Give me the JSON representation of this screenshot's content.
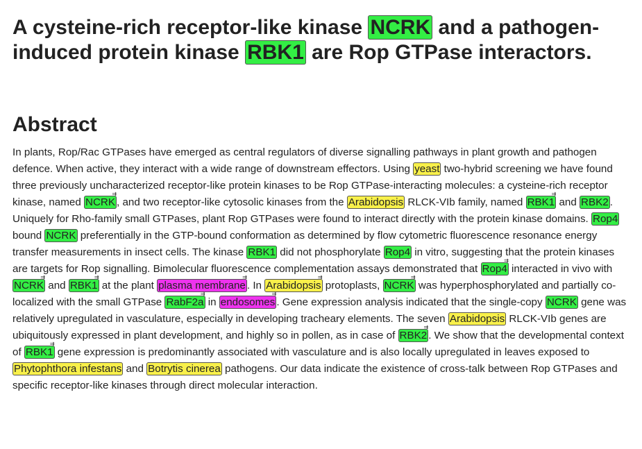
{
  "title": {
    "p1": "A cysteine-rich receptor-like kinase ",
    "e1": "NCRK",
    "p2": " and a pathogen-induced protein kinase ",
    "e2": "RBK1",
    "p3": " are Rop GTPase interactors."
  },
  "abstract_heading": "Abstract",
  "annotation_colors": {
    "gene": "#33ee44",
    "organism": "#f8f04a",
    "location": "#ee33ee"
  },
  "annotation_icon": "link-arrow-icon",
  "abstract": [
    {
      "t": "In plants, Rop/Rac GTPases have emerged as central regulators of diverse signalling pathways in plant growth and pathogen defence. When active, they interact with a wide range of downstream effectors. Using "
    },
    {
      "t": "yeast",
      "k": "org"
    },
    {
      "t": " two-hybrid screening we have found three previously uncharacterized receptor-like protein kinases to be Rop GTPase-interacting molecules: a cysteine-rich receptor kinase, named "
    },
    {
      "t": "NCRK",
      "k": "gene",
      "m": true
    },
    {
      "t": ", and two receptor-like cytosolic kinases from the "
    },
    {
      "t": "Arabidopsis",
      "k": "org"
    },
    {
      "t": " RLCK-VIb family, named "
    },
    {
      "t": "RBK1",
      "k": "gene",
      "m": true
    },
    {
      "t": " and "
    },
    {
      "t": "RBK2",
      "k": "gene"
    },
    {
      "t": ". Uniquely for Rho-family small GTPases, plant Rop GTPases were found to interact directly with the protein kinase domains. "
    },
    {
      "t": "Rop4",
      "k": "gene"
    },
    {
      "t": " bound "
    },
    {
      "t": "NCRK",
      "k": "gene"
    },
    {
      "t": " preferentially in the GTP-bound conformation as determined by flow cytometric fluorescence resonance energy transfer measurements in insect cells. The kinase "
    },
    {
      "t": "RBK1",
      "k": "gene"
    },
    {
      "t": " did not phosphorylate "
    },
    {
      "t": "Rop4",
      "k": "gene"
    },
    {
      "t": " in vitro, suggesting that the protein kinases are targets for Rop signalling. Bimolecular fluorescence complementation assays demonstrated that "
    },
    {
      "t": "Rop4",
      "k": "gene",
      "m": true
    },
    {
      "t": " interacted in vivo with "
    },
    {
      "t": "NCRK",
      "k": "gene",
      "m": true
    },
    {
      "t": " and "
    },
    {
      "t": "RBK1",
      "k": "gene",
      "m": true
    },
    {
      "t": " at the plant "
    },
    {
      "t": "plasma membrane",
      "k": "loc",
      "m": true
    },
    {
      "t": ". In "
    },
    {
      "t": "Arabidopsis",
      "k": "org",
      "m": true
    },
    {
      "t": " protoplasts, "
    },
    {
      "t": "NCRK",
      "k": "gene",
      "m": true
    },
    {
      "t": " was hyperphosphorylated and partially co-localized with the small GTPase "
    },
    {
      "t": "RabF2a",
      "k": "gene",
      "m": true
    },
    {
      "t": " in "
    },
    {
      "t": "endosomes",
      "k": "loc",
      "m": true
    },
    {
      "t": ". Gene expression analysis indicated that the single-copy "
    },
    {
      "t": "NCRK",
      "k": "gene"
    },
    {
      "t": " gene was relatively upregulated in vasculature, especially in developing tracheary elements. The seven "
    },
    {
      "t": "Arabidopsis",
      "k": "org"
    },
    {
      "t": " RLCK-VIb genes are ubiquitously expressed in plant development, and highly so in pollen, as in case of "
    },
    {
      "t": "RBK2",
      "k": "gene",
      "m": true
    },
    {
      "t": ". We show that the developmental context of "
    },
    {
      "t": "RBK1",
      "k": "gene",
      "m": true
    },
    {
      "t": " gene expression is predominantly associated with vasculature and is also locally upregulated in leaves exposed to "
    },
    {
      "t": "Phytophthora infestans",
      "k": "org"
    },
    {
      "t": " and "
    },
    {
      "t": "Botrytis cinerea",
      "k": "org"
    },
    {
      "t": " pathogens. Our data indicate the existence of cross-talk between Rop GTPases and specific receptor-like kinases through direct molecular interaction."
    }
  ]
}
